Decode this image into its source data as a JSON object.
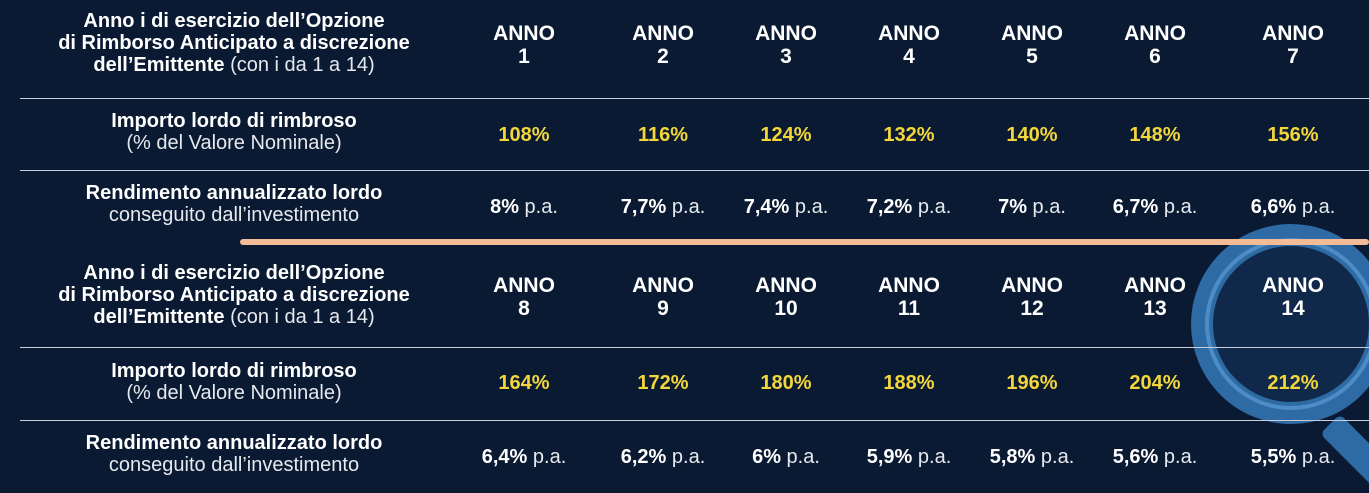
{
  "labels": {
    "year_bold": "Anno i di esercizio dell’Opzione di Rimborso Anticipato a discrezione dell’Emittente",
    "year_line1": "Anno i di esercizio dell’Opzione",
    "year_line2": "di Rimborso Anticipato a discrezione",
    "year_line3_bold": "dell’Emittente",
    "year_line3_light": "(con i da 1 a 14)",
    "importo_bold": "Importo lordo di rimbroso",
    "importo_light": "(% del Valore Nominale)",
    "rend_bold": "Rendimento annualizzato lordo",
    "rend_light": "conseguito dall’investimento"
  },
  "anno_word": "ANNO",
  "pa": "p.a.",
  "colors": {
    "background": "#0b1a33",
    "accent_yellow": "#f2d63a",
    "divider_orange": "#f3bb96",
    "magnifier": "#2e6aa3"
  },
  "icons": [
    "magnifying-glass-icon"
  ],
  "top": {
    "years": [
      "1",
      "2",
      "3",
      "4",
      "5",
      "6",
      "7"
    ],
    "importo": [
      "108%",
      "116%",
      "124%",
      "132%",
      "140%",
      "148%",
      "156%"
    ],
    "rend": [
      "8%",
      "7,7%",
      "7,4%",
      "7,2%",
      "7%",
      "6,7%",
      "6,6%"
    ]
  },
  "bottom": {
    "years": [
      "8",
      "9",
      "10",
      "11",
      "12",
      "13",
      "14"
    ],
    "importo": [
      "164%",
      "172%",
      "180%",
      "188%",
      "196%",
      "204%",
      "212%"
    ],
    "rend": [
      "6,4%",
      "6,2%",
      "6%",
      "5,9%",
      "5,8%",
      "5,6%",
      "5,5%"
    ]
  }
}
